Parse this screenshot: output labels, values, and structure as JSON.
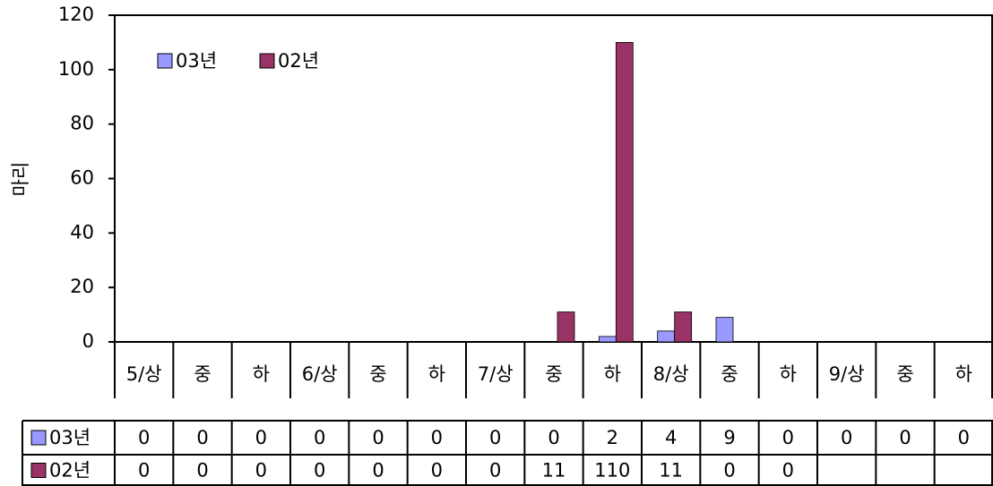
{
  "chart_data": {
    "type": "bar",
    "y_label": "마리",
    "categories": [
      "5/상",
      "중",
      "하",
      "6/상",
      "중",
      "하",
      "7/상",
      "중",
      "하",
      "8/상",
      "중",
      "하",
      "9/상",
      "중",
      "하"
    ],
    "series": [
      {
        "name": "03년",
        "color": "#9999ff",
        "values": [
          0,
          0,
          0,
          0,
          0,
          0,
          0,
          0,
          2,
          4,
          9,
          0,
          0,
          0,
          0
        ]
      },
      {
        "name": "02년",
        "color": "#993366",
        "values": [
          0,
          0,
          0,
          0,
          0,
          0,
          0,
          11,
          110,
          11,
          0,
          0,
          null,
          null,
          null
        ]
      }
    ],
    "ylim": [
      0,
      120
    ],
    "yticks": [
      0,
      20,
      40,
      60,
      80,
      100,
      120
    ],
    "legend": "top-left"
  }
}
